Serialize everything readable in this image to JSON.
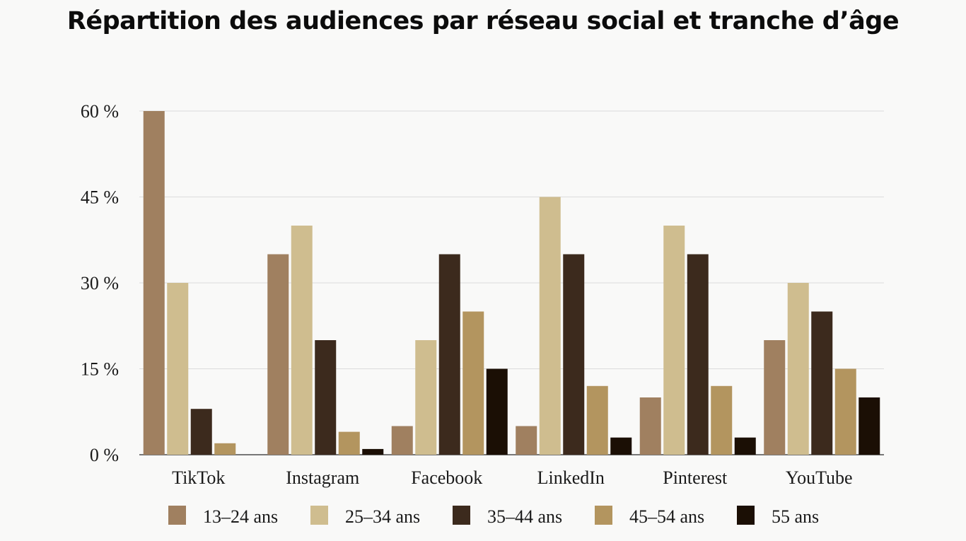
{
  "chart_data": {
    "type": "bar",
    "title": "Répartition des audiences par réseau social et tranche d’âge",
    "xlabel": "",
    "ylabel": "",
    "ylim": [
      0,
      60
    ],
    "yticks": [
      0,
      15,
      30,
      45,
      60
    ],
    "ytick_labels": [
      "0 %",
      "15 %",
      "30 %",
      "45 %",
      "60 %"
    ],
    "grid": true,
    "legend_position": "bottom",
    "categories": [
      "TikTok",
      "Instagram",
      "Facebook",
      "LinkedIn",
      "Pinterest",
      "YouTube"
    ],
    "series": [
      {
        "name": "13–24 ans",
        "color": "#a08060",
        "values": [
          60,
          35,
          5,
          5,
          10,
          20
        ]
      },
      {
        "name": "25–34 ans",
        "color": "#cfbd8f",
        "values": [
          30,
          40,
          20,
          45,
          40,
          30
        ]
      },
      {
        "name": "35–44 ans",
        "color": "#3c2a1d",
        "values": [
          8,
          20,
          35,
          35,
          35,
          25
        ]
      },
      {
        "name": "45–54 ans",
        "color": "#b3955f",
        "values": [
          2,
          4,
          25,
          12,
          12,
          15
        ]
      },
      {
        "name": "55 ans",
        "color": "#1b0f05",
        "values": [
          0,
          1,
          15,
          3,
          3,
          10
        ]
      }
    ]
  }
}
